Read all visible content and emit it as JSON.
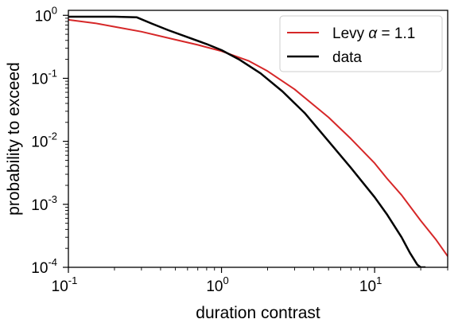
{
  "chart_data": {
    "type": "line",
    "xscale": "log",
    "yscale": "log",
    "xlim": [
      0.1,
      30
    ],
    "ylim": [
      0.0001,
      1.2
    ],
    "xlabel": "duration contrast",
    "ylabel": "probability to exceed",
    "grid": false,
    "legend_position": "top-right",
    "x_ticks": [
      {
        "base": "10",
        "exp": "-1",
        "value": 0.1
      },
      {
        "base": "10",
        "exp": "0",
        "value": 1
      },
      {
        "base": "10",
        "exp": "1",
        "value": 10
      }
    ],
    "y_ticks": [
      {
        "base": "10",
        "exp": "0",
        "value": 1
      },
      {
        "base": "10",
        "exp": "-1",
        "value": 0.1
      },
      {
        "base": "10",
        "exp": "-2",
        "value": 0.01
      },
      {
        "base": "10",
        "exp": "-3",
        "value": 0.001
      },
      {
        "base": "10",
        "exp": "-4",
        "value": 0.0001
      }
    ],
    "series": [
      {
        "name": "Levy α = 1.1",
        "legend_prefix": "Levy ",
        "legend_symbol": "α",
        "legend_suffix": " = 1.1",
        "color": "#d62728",
        "x": [
          0.1,
          0.15,
          0.2,
          0.3,
          0.5,
          0.7,
          1.0,
          1.5,
          2,
          3,
          5,
          7,
          10,
          12,
          15,
          20,
          25,
          30
        ],
        "y": [
          0.85,
          0.75,
          0.66,
          0.55,
          0.41,
          0.34,
          0.27,
          0.19,
          0.13,
          0.067,
          0.024,
          0.011,
          0.0045,
          0.0026,
          0.0014,
          0.00055,
          0.00028,
          0.00015
        ]
      },
      {
        "name": "data",
        "color": "#000000",
        "x": [
          0.1,
          0.2,
          0.28,
          0.35,
          0.45,
          0.6,
          0.8,
          1.0,
          1.3,
          1.8,
          2.5,
          3.5,
          5,
          7,
          10,
          12,
          15,
          17,
          19,
          20,
          21.5
        ],
        "y": [
          0.95,
          0.95,
          0.93,
          0.74,
          0.58,
          0.45,
          0.35,
          0.28,
          0.2,
          0.12,
          0.062,
          0.028,
          0.01,
          0.0038,
          0.0013,
          0.0007,
          0.0003,
          0.00017,
          0.00011,
          0.0001,
          0.0001
        ]
      }
    ]
  }
}
